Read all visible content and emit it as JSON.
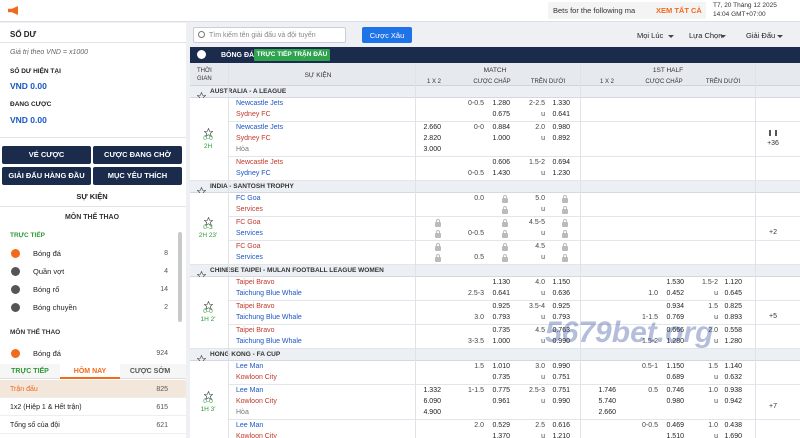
{
  "topbar": {
    "ticker": "Bets for the following ma",
    "view_all": "XEM TẤT CẢ",
    "date": "T7, 20 Tháng 12 2025",
    "time": "14:04 GMT+07:00"
  },
  "sidebar": {
    "balance_title": "SỐ DƯ",
    "balance_note": "Giá trị theo VND = x1000",
    "current_label": "SỐ DƯ HIỆN TẠI",
    "current_value": "VND 0.00",
    "pending_label": "ĐANG CƯỢC",
    "pending_value": "VND 0.00",
    "buttons": [
      "VÉ CƯỢC",
      "CƯỢC ĐANG CHỜ",
      "GIẢI ĐẤU HÀNG ĐẦU",
      "MỤC YÊU THÍCH"
    ],
    "events_title": "SỰ KIỆN",
    "sports_title": "MÔN THỂ THAO",
    "live_label": "TRỰC TIẾP",
    "live_sports": [
      {
        "name": "Bóng đá",
        "count": 8
      },
      {
        "name": "Quần vợt",
        "count": 4
      },
      {
        "name": "Bóng rổ",
        "count": 14
      },
      {
        "name": "Bóng chuyền",
        "count": 2
      }
    ],
    "sports_title2": "MÔN THỂ THAO",
    "selected_sport": {
      "name": "Bóng đá",
      "count": 924
    },
    "tabs": [
      "TRỰC TIẾP",
      "HÔM NAY",
      "CƯỢC SỚM"
    ],
    "active_tab": 1,
    "markets": [
      {
        "name": "Trận đấu",
        "count": 825
      },
      {
        "name": "1x2 (Hiệp 1 & Hết trận)",
        "count": 615
      },
      {
        "name": "Tổng số của đội",
        "count": 621
      }
    ]
  },
  "toolbar": {
    "search_placeholder": "Tìm kiếm tên giải đấu và đội tuyển",
    "parlay": "Cược Xâu",
    "filters": [
      "Mọi Lúc",
      "Lựa Chọn",
      "Giải Đấu"
    ]
  },
  "board": {
    "sport": "BÓNG ĐÁ",
    "badge": "TRỰC TIẾP TRẬN ĐẤU",
    "headers": {
      "time": "THỜI GIAN",
      "event": "SỰ KIỆN",
      "match": "MATCH",
      "half": "1ST HALF",
      "x12": "1 X 2",
      "hcap": "CƯỢC CHẤP",
      "ou": "TRÊN DƯỚI"
    },
    "under": "u",
    "leagues": [
      {
        "name": "AUSTRALIA - A LEAGUE",
        "matches": [
          {
            "score": "0-0",
            "clock": "2H",
            "more": "+36",
            "lines": [
              {
                "teams": [
                  "Newcastle Jets",
                  "Sydney FC"
                ],
                "ft": {
                  "hcap": "0-0.5",
                  "fav": "home",
                  "hcap_odds": [
                    "1.280",
                    "0.675"
                  ],
                  "ou": "2-2.5",
                  "ou_odds": [
                    "1.330",
                    "0.641"
                  ]
                }
              },
              {
                "teams": [
                  "Newcastle Jets",
                  "Sydney FC",
                  "Hòa"
                ],
                "ft": {
                  "x12": [
                    "2.660",
                    "2.820",
                    "3.000"
                  ],
                  "hcap": "0-0",
                  "fav": "home",
                  "hcap_odds": [
                    "0.884",
                    "1.000"
                  ],
                  "ou": "2.0",
                  "ou_odds": [
                    "0.980",
                    "0.892"
                  ]
                }
              },
              {
                "teams": [
                  "Newcastle Jets",
                  "Sydney FC"
                ],
                "ft": {
                  "hcap": "0-0.5",
                  "fav": "away",
                  "hcap_odds": [
                    "0.606",
                    "1.430"
                  ],
                  "ou": "1.5-2",
                  "ou_odds": [
                    "0.694",
                    "1.230"
                  ]
                }
              }
            ]
          }
        ]
      },
      {
        "name": "INDIA - SANTOSH TROPHY",
        "matches": [
          {
            "score": "0-3",
            "clock": "2H 23'",
            "more": "+2",
            "lines": [
              {
                "teams": [
                  "FC Goa",
                  "Services"
                ],
                "ft": {
                  "hcap": "0.0",
                  "fav": "home",
                  "locked": true,
                  "ou": "5.0"
                }
              },
              {
                "teams": [
                  "FC Goa",
                  "Services"
                ],
                "ft": {
                  "x12_locked": true,
                  "hcap": "0-0.5",
                  "fav": "away",
                  "locked": true,
                  "ou": "4.5-5"
                }
              },
              {
                "teams": [
                  "FC Goa",
                  "Services"
                ],
                "ft": {
                  "x12_locked": true,
                  "hcap": "0.5",
                  "fav": "away",
                  "locked": true,
                  "ou": "4.5"
                }
              }
            ]
          }
        ]
      },
      {
        "name": "CHINESE TAIPEI - MULAN FOOTBALL LEAGUE WOMEN",
        "matches": [
          {
            "score": "0-0",
            "clock": "1H 2'",
            "more": "+5",
            "lines": [
              {
                "teams": [
                  "Taipei Bravo",
                  "Taichung Blue Whale"
                ],
                "ft": {
                  "hcap": "2.5-3",
                  "fav": "away",
                  "hcap_odds": [
                    "1.130",
                    "0.641"
                  ],
                  "ou": "4.0",
                  "ou_odds": [
                    "1.150",
                    "0.636"
                  ]
                },
                "h1": {
                  "hcap": "1.0",
                  "fav": "away",
                  "hcap_odds": [
                    "1.530",
                    "0.452"
                  ],
                  "ou": "1.5-2",
                  "ou_odds": [
                    "1.120",
                    "0.645"
                  ]
                }
              },
              {
                "teams": [
                  "Taipei Bravo",
                  "Taichung Blue Whale"
                ],
                "ft": {
                  "hcap": "3.0",
                  "fav": "away",
                  "hcap_odds": [
                    "0.925",
                    "0.793"
                  ],
                  "ou": "3.5-4",
                  "ou_odds": [
                    "0.925",
                    "0.793"
                  ]
                },
                "h1": {
                  "hcap": "1-1.5",
                  "fav": "away",
                  "hcap_odds": [
                    "0.934",
                    "0.769"
                  ],
                  "ou": "1.5",
                  "ou_odds": [
                    "0.825",
                    "0.893"
                  ]
                }
              },
              {
                "teams": [
                  "Taipei Bravo",
                  "Taichung Blue Whale"
                ],
                "ft": {
                  "hcap": "3-3.5",
                  "fav": "away",
                  "hcap_odds": [
                    "0.735",
                    "1.000"
                  ],
                  "ou": "4.5",
                  "ou_odds": [
                    "0.763",
                    "0.990"
                  ]
                },
                "h1": {
                  "hcap": "1.5-2",
                  "fav": "away",
                  "hcap_odds": [
                    "0.666",
                    "1.280"
                  ],
                  "ou": "2.0",
                  "ou_odds": [
                    "0.558",
                    "1.280"
                  ]
                }
              }
            ]
          }
        ]
      },
      {
        "name": "HONG KONG - FA CUP",
        "matches": [
          {
            "score": "0-0",
            "clock": "1H 3'",
            "more": "+7",
            "lines": [
              {
                "teams": [
                  "Lee Man",
                  "Kowloon City"
                ],
                "ft": {
                  "hcap": "1.5",
                  "fav": "home",
                  "hcap_odds": [
                    "1.010",
                    "0.735"
                  ],
                  "ou": "3.0",
                  "ou_odds": [
                    "0.990",
                    "0.751"
                  ]
                },
                "h1": {
                  "hcap": "0.5-1",
                  "fav": "home",
                  "hcap_odds": [
                    "1.150",
                    "0.689"
                  ],
                  "ou": "1.5",
                  "ou_odds": [
                    "1.140",
                    "0.632"
                  ]
                }
              },
              {
                "teams": [
                  "Lee Man",
                  "Kowloon City",
                  "Hòa"
                ],
                "ft": {
                  "x12": [
                    "1.332",
                    "6.090",
                    "4.900"
                  ],
                  "hcap": "1-1.5",
                  "fav": "home",
                  "hcap_odds": [
                    "0.775",
                    "0.961"
                  ],
                  "ou": "2.5-3",
                  "ou_odds": [
                    "0.751",
                    "0.990"
                  ]
                },
                "h1": {
                  "x12": [
                    "1.746",
                    "5.740",
                    "2.660"
                  ],
                  "hcap": "0.5",
                  "fav": "home",
                  "hcap_odds": [
                    "0.746",
                    "0.980"
                  ],
                  "ou": "1.0",
                  "ou_odds": [
                    "0.938",
                    "0.942"
                  ]
                }
              },
              {
                "teams": [
                  "Lee Man",
                  "Kowloon City"
                ],
                "ft": {
                  "hcap": "2.0",
                  "fav": "home",
                  "hcap_odds": [
                    "0.529",
                    "1.370"
                  ],
                  "ou": "2.5",
                  "ou_odds": [
                    "0.616",
                    "1.210"
                  ]
                },
                "h1": {
                  "hcap": "0-0.5",
                  "fav": "home",
                  "hcap_odds": [
                    "0.469",
                    "1.510"
                  ],
                  "ou": "1.0",
                  "ou_odds": [
                    "0.438",
                    "1.690"
                  ]
                }
              }
            ]
          }
        ]
      }
    ]
  },
  "watermark": "5679bet.org"
}
